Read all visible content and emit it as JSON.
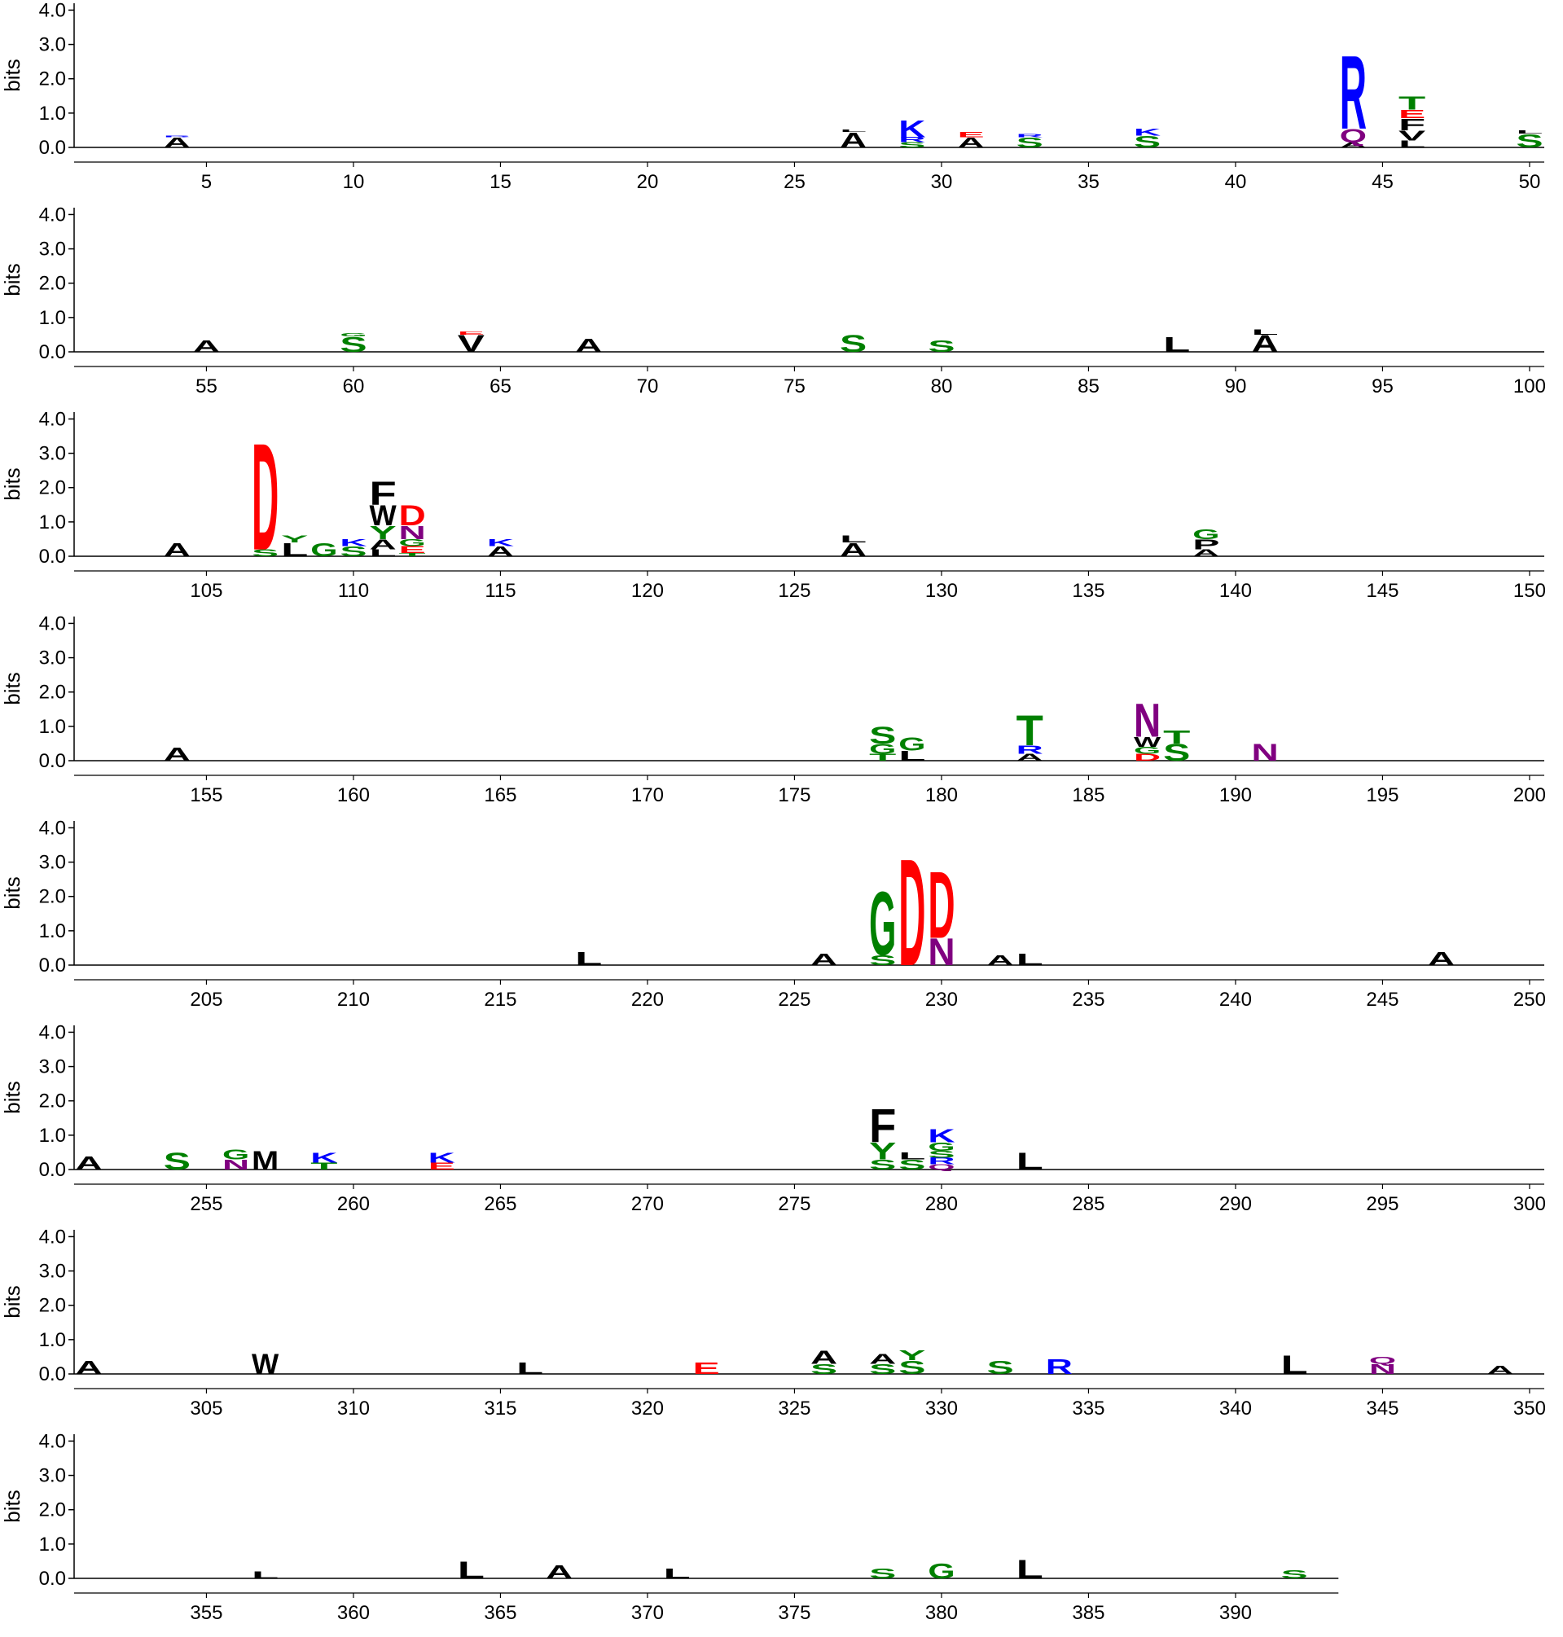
{
  "letter_colors": {
    "D": "#ff0000",
    "E": "#ff0000",
    "K": "#0000ff",
    "R": "#0000ff",
    "G": "#008000",
    "S": "#008000",
    "T": "#008000",
    "Y": "#008000",
    "N": "#800080",
    "Q": "#800080",
    "A": "#000000",
    "F": "#000000",
    "W": "#000000",
    "L": "#000000",
    "V": "#000000",
    "M": "#000000",
    "P": "#000000"
  },
  "chart_data": [
    {
      "type": "logo",
      "ylabel": "bits",
      "xlim": [
        0.5,
        50.5
      ],
      "ylim": [
        0,
        4.2
      ],
      "xticks": [
        5,
        10,
        15,
        20,
        25,
        30,
        35,
        40,
        45,
        50
      ],
      "yticks": [
        {
          "value": 0,
          "label": "0.0"
        },
        {
          "value": 1,
          "label": "1.0"
        },
        {
          "value": 2,
          "label": "2.0"
        },
        {
          "value": 3,
          "label": "3.0"
        },
        {
          "value": 4,
          "label": "4.0"
        }
      ],
      "stacks": [
        {
          "x": 4,
          "letters": [
            "A",
            "R"
          ],
          "heights": [
            0.3,
            0.05
          ]
        },
        {
          "x": 27,
          "letters": [
            "A",
            "L"
          ],
          "heights": [
            0.45,
            0.08
          ]
        },
        {
          "x": 29,
          "letters": [
            "S",
            "R",
            "K"
          ],
          "heights": [
            0.15,
            0.15,
            0.5
          ]
        },
        {
          "x": 31,
          "letters": [
            "A",
            "E"
          ],
          "heights": [
            0.3,
            0.15
          ]
        },
        {
          "x": 33,
          "letters": [
            "S",
            "R"
          ],
          "heights": [
            0.3,
            0.1
          ]
        },
        {
          "x": 37,
          "letters": [
            "S",
            "K"
          ],
          "heights": [
            0.35,
            0.2
          ]
        },
        {
          "x": 44,
          "letters": [
            "A",
            "Q",
            "R"
          ],
          "heights": [
            0.15,
            0.4,
            2.2
          ]
        },
        {
          "x": 46,
          "letters": [
            "L",
            "V",
            "F",
            "E",
            "T"
          ],
          "heights": [
            0.2,
            0.3,
            0.35,
            0.25,
            0.4
          ]
        },
        {
          "x": 50,
          "letters": [
            "S",
            "L"
          ],
          "heights": [
            0.4,
            0.1
          ]
        }
      ]
    },
    {
      "type": "logo",
      "ylabel": "bits",
      "xlim": [
        50.5,
        100.5
      ],
      "ylim": [
        0,
        4.2
      ],
      "xticks": [
        55,
        60,
        65,
        70,
        75,
        80,
        85,
        90,
        95,
        100
      ],
      "yticks": [
        {
          "value": 0,
          "label": "0.0"
        },
        {
          "value": 1,
          "label": "1.0"
        },
        {
          "value": 2,
          "label": "2.0"
        },
        {
          "value": 3,
          "label": "3.0"
        },
        {
          "value": 4,
          "label": "4.0"
        }
      ],
      "stacks": [
        {
          "x": 55,
          "letters": [
            "A"
          ],
          "heights": [
            0.35
          ]
        },
        {
          "x": 60,
          "letters": [
            "S",
            "G"
          ],
          "heights": [
            0.45,
            0.1
          ]
        },
        {
          "x": 64,
          "letters": [
            "V",
            "E"
          ],
          "heights": [
            0.5,
            0.1
          ]
        },
        {
          "x": 68,
          "letters": [
            "A"
          ],
          "heights": [
            0.4
          ]
        },
        {
          "x": 77,
          "letters": [
            "S"
          ],
          "heights": [
            0.5
          ]
        },
        {
          "x": 80,
          "letters": [
            "S"
          ],
          "heights": [
            0.35
          ]
        },
        {
          "x": 88,
          "letters": [
            "L"
          ],
          "heights": [
            0.45
          ]
        },
        {
          "x": 91,
          "letters": [
            "A",
            "L"
          ],
          "heights": [
            0.5,
            0.15
          ]
        }
      ]
    },
    {
      "type": "logo",
      "ylabel": "bits",
      "xlim": [
        100.5,
        150.5
      ],
      "ylim": [
        0,
        4.2
      ],
      "xticks": [
        105,
        110,
        115,
        120,
        125,
        130,
        135,
        140,
        145,
        150
      ],
      "yticks": [
        {
          "value": 0,
          "label": "0.0"
        },
        {
          "value": 1,
          "label": "1.0"
        },
        {
          "value": 2,
          "label": "2.0"
        },
        {
          "value": 3,
          "label": "3.0"
        },
        {
          "value": 4,
          "label": "4.0"
        }
      ],
      "stacks": [
        {
          "x": 104,
          "letters": [
            "A"
          ],
          "heights": [
            0.4
          ]
        },
        {
          "x": 107,
          "letters": [
            "S",
            "D"
          ],
          "heights": [
            0.2,
            3.2
          ]
        },
        {
          "x": 108,
          "letters": [
            "L",
            "Y"
          ],
          "heights": [
            0.4,
            0.2
          ]
        },
        {
          "x": 109,
          "letters": [
            "G"
          ],
          "heights": [
            0.4
          ]
        },
        {
          "x": 110,
          "letters": [
            "S",
            "K"
          ],
          "heights": [
            0.3,
            0.2
          ]
        },
        {
          "x": 111,
          "letters": [
            "L",
            "A",
            "Y",
            "W",
            "F"
          ],
          "heights": [
            0.2,
            0.3,
            0.4,
            0.6,
            0.7
          ]
        },
        {
          "x": 112,
          "letters": [
            "T",
            "E",
            "G",
            "N",
            "D"
          ],
          "heights": [
            0.1,
            0.2,
            0.2,
            0.4,
            0.6
          ]
        },
        {
          "x": 115,
          "letters": [
            "A",
            "K"
          ],
          "heights": [
            0.3,
            0.2
          ]
        },
        {
          "x": 127,
          "letters": [
            "A",
            "L"
          ],
          "heights": [
            0.4,
            0.2
          ]
        },
        {
          "x": 139,
          "letters": [
            "A",
            "P",
            "G"
          ],
          "heights": [
            0.2,
            0.3,
            0.3
          ]
        }
      ]
    },
    {
      "type": "logo",
      "ylabel": "bits",
      "xlim": [
        150.5,
        200.5
      ],
      "ylim": [
        0,
        4.2
      ],
      "xticks": [
        155,
        160,
        165,
        170,
        175,
        180,
        185,
        190,
        195,
        200
      ],
      "yticks": [
        {
          "value": 0,
          "label": "0.0"
        },
        {
          "value": 1,
          "label": "1.0"
        },
        {
          "value": 2,
          "label": "2.0"
        },
        {
          "value": 3,
          "label": "3.0"
        },
        {
          "value": 4,
          "label": "4.0"
        }
      ],
      "stacks": [
        {
          "x": 154,
          "letters": [
            "A"
          ],
          "heights": [
            0.4
          ]
        },
        {
          "x": 178,
          "letters": [
            "T",
            "G",
            "S"
          ],
          "heights": [
            0.2,
            0.3,
            0.5
          ]
        },
        {
          "x": 179,
          "letters": [
            "L",
            "G"
          ],
          "heights": [
            0.3,
            0.4
          ]
        },
        {
          "x": 183,
          "letters": [
            "A",
            "R",
            "T"
          ],
          "heights": [
            0.2,
            0.25,
            0.9
          ]
        },
        {
          "x": 187,
          "letters": [
            "D",
            "G",
            "W",
            "N"
          ],
          "heights": [
            0.2,
            0.2,
            0.3,
            1.0
          ]
        },
        {
          "x": 188,
          "letters": [
            "S",
            "T"
          ],
          "heights": [
            0.5,
            0.4
          ]
        },
        {
          "x": 191,
          "letters": [
            "N"
          ],
          "heights": [
            0.5
          ]
        }
      ]
    },
    {
      "type": "logo",
      "ylabel": "bits",
      "xlim": [
        200.5,
        250.5
      ],
      "ylim": [
        0,
        4.2
      ],
      "xticks": [
        205,
        210,
        215,
        220,
        225,
        230,
        235,
        240,
        245,
        250
      ],
      "yticks": [
        {
          "value": 0,
          "label": "0.0"
        },
        {
          "value": 1,
          "label": "1.0"
        },
        {
          "value": 2,
          "label": "2.0"
        },
        {
          "value": 3,
          "label": "3.0"
        },
        {
          "value": 4,
          "label": "4.0"
        }
      ],
      "stacks": [
        {
          "x": 218,
          "letters": [
            "L"
          ],
          "heights": [
            0.4
          ]
        },
        {
          "x": 226,
          "letters": [
            "A"
          ],
          "heights": [
            0.35
          ]
        },
        {
          "x": 228,
          "letters": [
            "S",
            "G"
          ],
          "heights": [
            0.3,
            1.9
          ]
        },
        {
          "x": 229,
          "letters": [
            "D"
          ],
          "heights": [
            3.2
          ]
        },
        {
          "x": 230,
          "letters": [
            "N",
            "D"
          ],
          "heights": [
            0.8,
            2.0
          ]
        },
        {
          "x": 232,
          "letters": [
            "A"
          ],
          "heights": [
            0.3
          ]
        },
        {
          "x": 233,
          "letters": [
            "L"
          ],
          "heights": [
            0.35
          ]
        },
        {
          "x": 247,
          "letters": [
            "A"
          ],
          "heights": [
            0.4
          ]
        }
      ]
    },
    {
      "type": "logo",
      "ylabel": "bits",
      "xlim": [
        250.5,
        300.5
      ],
      "ylim": [
        0,
        4.2
      ],
      "xticks": [
        255,
        260,
        265,
        270,
        275,
        280,
        285,
        290,
        295,
        300
      ],
      "yticks": [
        {
          "value": 0,
          "label": "0.0"
        },
        {
          "value": 1,
          "label": "1.0"
        },
        {
          "value": 2,
          "label": "2.0"
        },
        {
          "value": 3,
          "label": "3.0"
        },
        {
          "value": 4,
          "label": "4.0"
        }
      ],
      "stacks": [
        {
          "x": 251,
          "letters": [
            "A"
          ],
          "heights": [
            0.4
          ]
        },
        {
          "x": 254,
          "letters": [
            "S"
          ],
          "heights": [
            0.5
          ]
        },
        {
          "x": 256,
          "letters": [
            "N",
            "G"
          ],
          "heights": [
            0.3,
            0.3
          ]
        },
        {
          "x": 257,
          "letters": [
            "M"
          ],
          "heights": [
            0.55
          ]
        },
        {
          "x": 259,
          "letters": [
            "T",
            "K"
          ],
          "heights": [
            0.2,
            0.3
          ]
        },
        {
          "x": 263,
          "letters": [
            "E",
            "K"
          ],
          "heights": [
            0.2,
            0.3
          ]
        },
        {
          "x": 278,
          "letters": [
            "S",
            "Y",
            "F"
          ],
          "heights": [
            0.3,
            0.5,
            1.0
          ]
        },
        {
          "x": 279,
          "letters": [
            "S",
            "L"
          ],
          "heights": [
            0.3,
            0.2
          ]
        },
        {
          "x": 280,
          "letters": [
            "Q",
            "R",
            "S",
            "G",
            "K"
          ],
          "heights": [
            0.15,
            0.2,
            0.2,
            0.25,
            0.4
          ]
        },
        {
          "x": 283,
          "letters": [
            "L"
          ],
          "heights": [
            0.5
          ]
        }
      ]
    },
    {
      "type": "logo",
      "ylabel": "bits",
      "xlim": [
        300.5,
        350.5
      ],
      "ylim": [
        0,
        4.2
      ],
      "xticks": [
        305,
        310,
        315,
        320,
        325,
        330,
        335,
        340,
        345,
        350
      ],
      "yticks": [
        {
          "value": 0,
          "label": "0.0"
        },
        {
          "value": 1,
          "label": "1.0"
        },
        {
          "value": 2,
          "label": "2.0"
        },
        {
          "value": 3,
          "label": "3.0"
        },
        {
          "value": 4,
          "label": "4.0"
        }
      ],
      "stacks": [
        {
          "x": 301,
          "letters": [
            "A"
          ],
          "heights": [
            0.4
          ]
        },
        {
          "x": 307,
          "letters": [
            "W"
          ],
          "heights": [
            0.6
          ]
        },
        {
          "x": 316,
          "letters": [
            "L"
          ],
          "heights": [
            0.35
          ]
        },
        {
          "x": 322,
          "letters": [
            "E"
          ],
          "heights": [
            0.35
          ]
        },
        {
          "x": 326,
          "letters": [
            "S",
            "A"
          ],
          "heights": [
            0.3,
            0.4
          ]
        },
        {
          "x": 328,
          "letters": [
            "S",
            "A"
          ],
          "heights": [
            0.3,
            0.3
          ]
        },
        {
          "x": 329,
          "letters": [
            "S",
            "Y"
          ],
          "heights": [
            0.4,
            0.3
          ]
        },
        {
          "x": 332,
          "letters": [
            "S"
          ],
          "heights": [
            0.4
          ]
        },
        {
          "x": 334,
          "letters": [
            "R"
          ],
          "heights": [
            0.45
          ]
        },
        {
          "x": 342,
          "letters": [
            "L"
          ],
          "heights": [
            0.55
          ]
        },
        {
          "x": 345,
          "letters": [
            "N",
            "Q"
          ],
          "heights": [
            0.3,
            0.2
          ]
        },
        {
          "x": 349,
          "letters": [
            "A"
          ],
          "heights": [
            0.25
          ]
        }
      ]
    },
    {
      "type": "logo",
      "ylabel": "bits",
      "xlim": [
        350.5,
        393.5
      ],
      "ylim": [
        0,
        4.2
      ],
      "xticks": [
        355,
        360,
        365,
        370,
        375,
        380,
        385,
        390
      ],
      "yticks": [
        {
          "value": 0,
          "label": "0.0"
        },
        {
          "value": 1,
          "label": "1.0"
        },
        {
          "value": 2,
          "label": "2.0"
        },
        {
          "value": 3,
          "label": "3.0"
        },
        {
          "value": 4,
          "label": "4.0"
        }
      ],
      "stacks": [
        {
          "x": 357,
          "letters": [
            "L"
          ],
          "heights": [
            0.2
          ]
        },
        {
          "x": 364,
          "letters": [
            "L"
          ],
          "heights": [
            0.5
          ]
        },
        {
          "x": 367,
          "letters": [
            "A"
          ],
          "heights": [
            0.4
          ]
        },
        {
          "x": 371,
          "letters": [
            "L"
          ],
          "heights": [
            0.3
          ]
        },
        {
          "x": 378,
          "letters": [
            "S"
          ],
          "heights": [
            0.3
          ]
        },
        {
          "x": 380,
          "letters": [
            "G"
          ],
          "heights": [
            0.45
          ]
        },
        {
          "x": 383,
          "letters": [
            "L"
          ],
          "heights": [
            0.55
          ]
        },
        {
          "x": 392,
          "letters": [
            "S"
          ],
          "heights": [
            0.25
          ]
        }
      ]
    }
  ]
}
